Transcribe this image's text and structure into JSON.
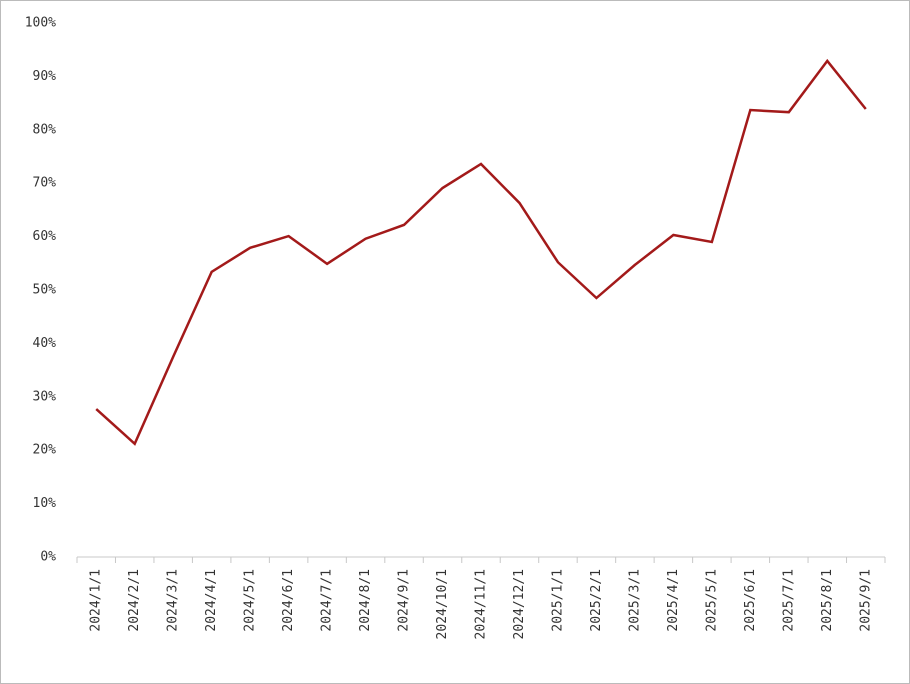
{
  "chart_data": {
    "type": "line",
    "categories": [
      "2024/1/1",
      "2024/2/1",
      "2024/3/1",
      "2024/4/1",
      "2024/5/1",
      "2024/6/1",
      "2024/7/1",
      "2024/8/1",
      "2024/9/1",
      "2024/10/1",
      "2024/11/1",
      "2024/12/1",
      "2025/1/1",
      "2025/2/1",
      "2025/3/1",
      "2025/4/1",
      "2025/5/1",
      "2025/6/1",
      "2025/7/1",
      "2025/8/1",
      "2025/9/1"
    ],
    "values": [
      27.7,
      21.2,
      37.5,
      53.4,
      57.9,
      60.1,
      54.9,
      59.6,
      62.2,
      69.1,
      73.6,
      66.3,
      55.2,
      48.5,
      54.7,
      60.3,
      59.0,
      83.7,
      83.3,
      92.9,
      83.9
    ],
    "color": "#a31a1a",
    "ylim": [
      0,
      100
    ],
    "yticks": [
      {
        "value": 0,
        "label": "0%"
      },
      {
        "value": 10,
        "label": "10%"
      },
      {
        "value": 20,
        "label": "20%"
      },
      {
        "value": 30,
        "label": "30%"
      },
      {
        "value": 40,
        "label": "40%"
      },
      {
        "value": 50,
        "label": "50%"
      },
      {
        "value": 60,
        "label": "60%"
      },
      {
        "value": 70,
        "label": "70%"
      },
      {
        "value": 80,
        "label": "80%"
      },
      {
        "value": 90,
        "label": "90%"
      },
      {
        "value": 100,
        "label": "100%"
      }
    ],
    "grid": false
  }
}
